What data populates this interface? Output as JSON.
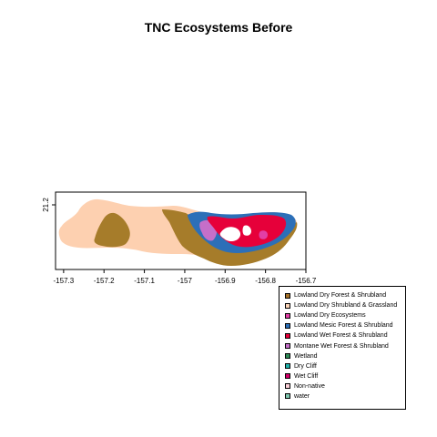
{
  "title": "TNC Ecosystems Before",
  "map": {
    "x_axis": {
      "range": [
        -157.32,
        -156.7
      ],
      "ticks": [
        "-157.3",
        "-157.2",
        "-157.1",
        "-157",
        "-156.9",
        "-156.8",
        "-156.7"
      ]
    },
    "y_axis": {
      "ticks": [
        "21.2"
      ]
    },
    "colors": {
      "non_native": "#fdd0b0",
      "dry_shrubland": "#a67c2a",
      "mesic": "#2c6fb8",
      "wet_forest": "#e6003a",
      "montane": "#c56fc9",
      "dry_ecosystems": "#e23fa6"
    }
  },
  "legend": {
    "items": [
      {
        "label": "Lowland Dry Forest & Shrubland",
        "color": "#a6722a"
      },
      {
        "label": "Lowland Dry Shrubland & Grassland",
        "color": "#fdd5b8"
      },
      {
        "label": "Lowland Dry Ecosystems",
        "color": "#e23fa6"
      },
      {
        "label": "Lowland Mesic Forest & Shrubland",
        "color": "#2c6fb8"
      },
      {
        "label": "Lowland Wet Forest & Shrubland",
        "color": "#e6003a"
      },
      {
        "label": "Montane Wet Forest & Shrubland",
        "color": "#c56fc9"
      },
      {
        "label": "Wetland",
        "color": "#2e8b57"
      },
      {
        "label": "Dry Cliff",
        "color": "#20b2aa"
      },
      {
        "label": "Wet Cliff",
        "color": "#d4006a"
      },
      {
        "label": "Non-native",
        "color": "#fdd0d8"
      },
      {
        "label": "water",
        "color": "#7fc8b0"
      }
    ]
  }
}
